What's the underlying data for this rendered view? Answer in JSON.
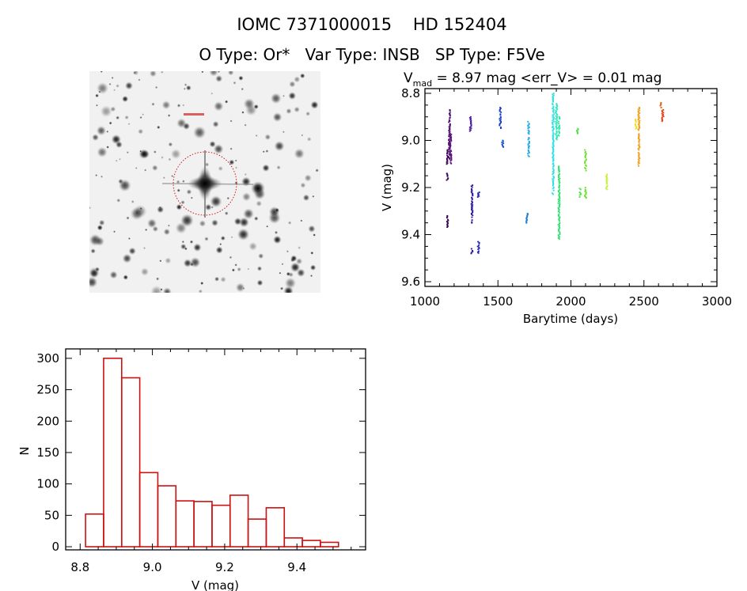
{
  "header": {
    "title": "IOMC 7371000015    HD 152404",
    "subtitle": "O Type: Or*   Var Type: INSB   SP Type: F5Ve"
  },
  "image_panel": {
    "description_icon": "sky-field-image",
    "target_marker_color": "#cc0000"
  },
  "chart_data": [
    {
      "type": "scatter",
      "title_main": "V",
      "title_sub": "mad",
      "title_rest": " = 8.97 mag <err_V> = 0.01 mag",
      "xlabel": "Barytime (days)",
      "ylabel": "V (mag)",
      "xlim": [
        1000,
        3000
      ],
      "ylim": [
        9.62,
        8.78
      ],
      "y_reversed": true,
      "xticks": [
        "1000",
        "1500",
        "2000",
        "2500",
        "3000"
      ],
      "yticks": [
        "8.8",
        "9.0",
        "9.2",
        "9.4",
        "9.6"
      ],
      "color_by_time": "rainbow (purple to red)",
      "segments": [
        {
          "x": 1168,
          "y": [
            8.87,
            9.08
          ],
          "color": "#4b0a6e"
        },
        {
          "x": 1176,
          "y": [
            8.97,
            9.1
          ],
          "color": "#5a137f"
        },
        {
          "x": 1154,
          "y": [
            9.04,
            9.1
          ],
          "color": "#3a0550"
        },
        {
          "x": 1154,
          "y": [
            9.14,
            9.17
          ],
          "color": "#3a0550"
        },
        {
          "x": 1154,
          "y": [
            9.32,
            9.37
          ],
          "color": "#3a0550"
        },
        {
          "x": 1313,
          "y": [
            8.9,
            8.96
          ],
          "color": "#4a1a9a"
        },
        {
          "x": 1322,
          "y": [
            9.19,
            9.35
          ],
          "color": "#2a1aa0"
        },
        {
          "x": 1322,
          "y": [
            9.46,
            9.48
          ],
          "color": "#2a1aa0"
        },
        {
          "x": 1367,
          "y": [
            9.22,
            9.24
          ],
          "color": "#2020b0"
        },
        {
          "x": 1367,
          "y": [
            9.43,
            9.48
          ],
          "color": "#2020b0"
        },
        {
          "x": 1516,
          "y": [
            8.86,
            8.95
          ],
          "color": "#1a40c8"
        },
        {
          "x": 1532,
          "y": [
            9.0,
            9.03
          ],
          "color": "#1a50d0"
        },
        {
          "x": 1711,
          "y": [
            8.92,
            9.07
          ],
          "color": "#20a8e0"
        },
        {
          "x": 1699,
          "y": [
            9.31,
            9.35
          ],
          "color": "#2080d8"
        },
        {
          "x": 1878,
          "y": [
            8.8,
            9.23
          ],
          "color": "#30e0e0"
        },
        {
          "x": 1901,
          "y": [
            8.84,
            9.0
          ],
          "color": "#30e8c0"
        },
        {
          "x": 1919,
          "y": [
            8.9,
            8.98
          ],
          "color": "#30e8a0"
        },
        {
          "x": 1919,
          "y": [
            9.11,
            9.42
          ],
          "color": "#30e070"
        },
        {
          "x": 2046,
          "y": [
            8.95,
            8.97
          ],
          "color": "#40e040"
        },
        {
          "x": 2064,
          "y": [
            9.2,
            9.24
          ],
          "color": "#50e040"
        },
        {
          "x": 2100,
          "y": [
            9.04,
            9.14
          ],
          "color": "#70e030"
        },
        {
          "x": 2100,
          "y": [
            9.2,
            9.25
          ],
          "color": "#70e030"
        },
        {
          "x": 2245,
          "y": [
            9.14,
            9.21
          ],
          "color": "#c8f040"
        },
        {
          "x": 2444,
          "y": [
            8.91,
            8.95
          ],
          "color": "#f0e020"
        },
        {
          "x": 2466,
          "y": [
            8.86,
            9.11
          ],
          "color": "#f0a020"
        },
        {
          "x": 2616,
          "y": [
            8.84,
            8.86
          ],
          "color": "#e06010"
        },
        {
          "x": 2629,
          "y": [
            8.87,
            8.92
          ],
          "color": "#e04010"
        }
      ]
    },
    {
      "type": "bar",
      "subtype": "histogram",
      "xlabel": "V (mag)",
      "ylabel": "N",
      "xlim": [
        8.76,
        9.59
      ],
      "ylim": [
        -5,
        315
      ],
      "xticks": [
        "8.8",
        "9.0",
        "9.2",
        "9.4"
      ],
      "yticks": [
        "0",
        "50",
        "100",
        "150",
        "200",
        "250",
        "300"
      ],
      "bin_edges": [
        8.815,
        8.865,
        8.915,
        8.965,
        9.015,
        9.065,
        9.115,
        9.165,
        9.215,
        9.265,
        9.315,
        9.365,
        9.415,
        9.465,
        9.515
      ],
      "values": [
        52,
        300,
        269,
        118,
        97,
        73,
        72,
        66,
        82,
        44,
        62,
        14,
        10,
        7
      ],
      "bar_color": "#cc1111"
    }
  ]
}
